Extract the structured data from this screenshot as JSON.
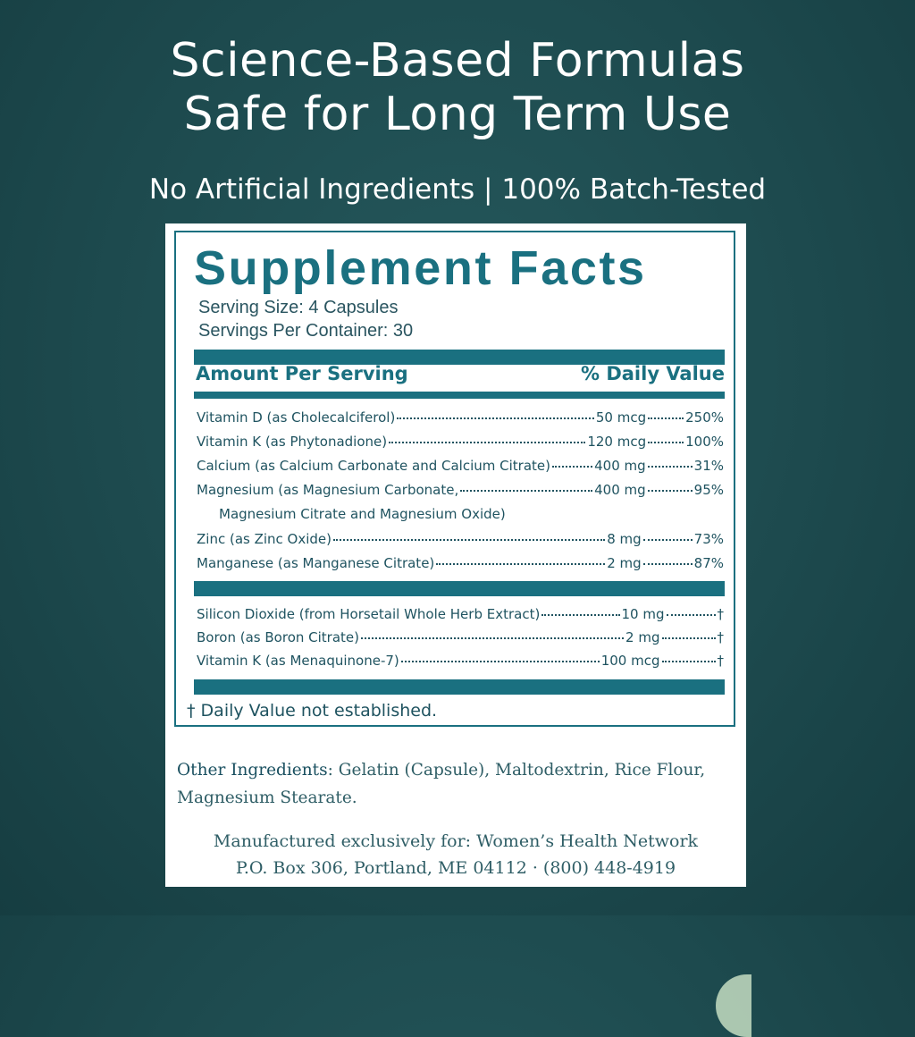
{
  "headline": {
    "line1": "Science-Based Formulas",
    "line2": "Safe for Long Term Use",
    "subtitle": "No Artificial Ingredients | 100% Batch-Tested"
  },
  "label": {
    "title": "Supplement Facts",
    "serving_size": "Serving Size: 4 Capsules",
    "servings_per_container": "Servings Per Container: 30",
    "amount_header": "Amount Per Serving",
    "dv_header": "% Daily Value",
    "nutrients": [
      {
        "name": "Vitamin D (as Cholecalciferol)",
        "amount": "50 mcg",
        "dv": "250%"
      },
      {
        "name": "Vitamin K (as Phytonadione)",
        "amount": "120 mcg",
        "dv": "100%"
      },
      {
        "name": "Calcium (as Calcium Carbonate and Calcium Citrate)",
        "amount": "400 mg",
        "dv": "31%"
      },
      {
        "name": "Magnesium (as Magnesium Carbonate,",
        "name_cont": "Magnesium Citrate and Magnesium Oxide)",
        "amount": "400 mg",
        "dv": "95%"
      },
      {
        "name": "Zinc (as Zinc Oxide)",
        "amount": "8 mg",
        "dv": "73%"
      },
      {
        "name": "Manganese (as Manganese Citrate)",
        "amount": "2 mg",
        "dv": "87%"
      }
    ],
    "other_nutrients": [
      {
        "name": "Silicon Dioxide (from Horsetail Whole Herb Extract)",
        "amount": "10 mg",
        "dv": "†"
      },
      {
        "name": "Boron (as Boron Citrate)",
        "amount": "2 mg",
        "dv": "†"
      },
      {
        "name": "Vitamin K (as Menaquinone-7)",
        "amount": "100 mcg",
        "dv": "†"
      }
    ],
    "footnote": "† Daily Value not established.",
    "other_ingredients_label": "Other Ingredients",
    "other_ingredients": ": Gelatin (Capsule), Maltodextrin, Rice Flour, Magnesium Stearate.",
    "manufacturer_line1": "Manufactured exclusively for: Women’s Health Network",
    "manufacturer_line2": "P.O. Box 306, Portland, ME 04112 · (800) 448-4919"
  },
  "colors": {
    "background": "#1d4a4e",
    "accent": "#1a7080",
    "card": "#ffffff"
  }
}
